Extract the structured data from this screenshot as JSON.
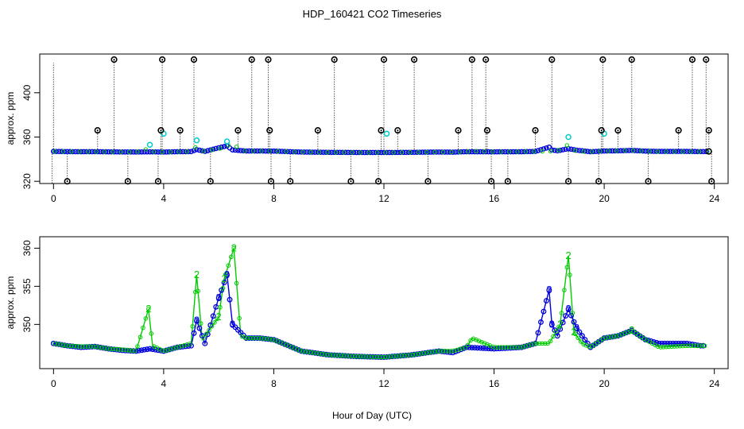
{
  "chart_data": {
    "title": "HDP_160421  CO2 Timeseries",
    "xlabel": "Hour of Day (UTC)",
    "colors": {
      "series2": "#00cc00",
      "series3": "#0000dd",
      "series1": "#000000",
      "cyan": "#00cccc"
    },
    "panels": [
      {
        "type": "scatter",
        "ylabel": "approx. ppm",
        "xlim": [
          -0.5,
          24.5
        ],
        "ylim": [
          318,
          435
        ],
        "xticks": [
          0,
          4,
          8,
          12,
          16,
          20,
          24
        ],
        "yticks": [
          320,
          360,
          400
        ],
        "baseline": 347,
        "outliers": [
          {
            "x": 0.5,
            "y": 320
          },
          {
            "x": 1.6,
            "y": 366
          },
          {
            "x": 2.2,
            "y": 430
          },
          {
            "x": 2.7,
            "y": 320
          },
          {
            "x": 3.8,
            "y": 320
          },
          {
            "x": 3.9,
            "y": 366
          },
          {
            "x": 3.95,
            "y": 430
          },
          {
            "x": 4.6,
            "y": 366
          },
          {
            "x": 5.1,
            "y": 430
          },
          {
            "x": 5.7,
            "y": 320
          },
          {
            "x": 6.7,
            "y": 366
          },
          {
            "x": 7.2,
            "y": 430
          },
          {
            "x": 7.8,
            "y": 430
          },
          {
            "x": 7.85,
            "y": 366
          },
          {
            "x": 7.9,
            "y": 320
          },
          {
            "x": 8.6,
            "y": 320
          },
          {
            "x": 9.6,
            "y": 366
          },
          {
            "x": 10.2,
            "y": 430
          },
          {
            "x": 10.8,
            "y": 320
          },
          {
            "x": 11.8,
            "y": 320
          },
          {
            "x": 11.9,
            "y": 366
          },
          {
            "x": 12.0,
            "y": 430
          },
          {
            "x": 12.5,
            "y": 366
          },
          {
            "x": 13.1,
            "y": 430
          },
          {
            "x": 13.6,
            "y": 320
          },
          {
            "x": 14.7,
            "y": 366
          },
          {
            "x": 15.2,
            "y": 430
          },
          {
            "x": 15.7,
            "y": 430
          },
          {
            "x": 15.75,
            "y": 366
          },
          {
            "x": 15.9,
            "y": 320
          },
          {
            "x": 16.5,
            "y": 320
          },
          {
            "x": 17.5,
            "y": 366
          },
          {
            "x": 18.1,
            "y": 430
          },
          {
            "x": 18.7,
            "y": 320
          },
          {
            "x": 19.8,
            "y": 320
          },
          {
            "x": 19.9,
            "y": 366
          },
          {
            "x": 19.95,
            "y": 430
          },
          {
            "x": 20.5,
            "y": 366
          },
          {
            "x": 21.0,
            "y": 430
          },
          {
            "x": 21.6,
            "y": 320
          },
          {
            "x": 22.7,
            "y": 366
          },
          {
            "x": 23.2,
            "y": 430
          },
          {
            "x": 23.7,
            "y": 430
          },
          {
            "x": 23.8,
            "y": 366
          },
          {
            "x": 23.9,
            "y": 320
          }
        ],
        "cyan_points": [
          {
            "x": 3.5,
            "y": 353
          },
          {
            "x": 4.0,
            "y": 363
          },
          {
            "x": 5.2,
            "y": 357
          },
          {
            "x": 6.3,
            "y": 356
          },
          {
            "x": 12.1,
            "y": 363
          },
          {
            "x": 18.7,
            "y": 360
          },
          {
            "x": 20.0,
            "y": 363
          }
        ]
      },
      {
        "type": "line",
        "ylabel": "approx. ppm",
        "xlim": [
          -0.5,
          24.5
        ],
        "ylim": [
          344.2,
          361.5
        ],
        "xticks": [
          0,
          4,
          8,
          12,
          16,
          20,
          24
        ],
        "yticks": [
          350,
          355,
          360
        ],
        "series": [
          {
            "label": "3",
            "x": [
              0,
              0.5,
              1,
              1.5,
              2,
              2.5,
              3,
              3.5,
              4,
              4.5,
              5,
              5.2,
              5.5,
              6,
              6.3,
              6.5,
              7,
              7.5,
              8,
              9,
              10,
              11,
              12,
              13,
              14,
              14.5,
              15,
              16,
              17,
              17.5,
              18,
              18.1,
              18.3,
              18.7,
              19,
              19.5,
              20,
              20.5,
              21,
              21.5,
              22,
              23,
              23.5
            ],
            "y": [
              347.5,
              347.2,
              347.0,
              347.1,
              346.8,
              346.6,
              346.5,
              346.8,
              346.5,
              347.0,
              347.2,
              350.5,
              347.5,
              353.5,
              356.5,
              350.0,
              348.2,
              348.2,
              348.0,
              346.5,
              346.0,
              345.8,
              345.7,
              346.0,
              346.5,
              346.3,
              347.0,
              346.8,
              347.0,
              347.5,
              354.5,
              350.0,
              348.5,
              352.0,
              349.5,
              347.0,
              348.2,
              348.5,
              349.2,
              348.0,
              347.5,
              347.5,
              347.2
            ]
          },
          {
            "label": "2",
            "x": [
              0,
              0.5,
              1,
              1.5,
              2,
              2.5,
              3,
              3.45,
              3.6,
              4,
              4.5,
              5,
              5.2,
              5.4,
              6,
              6.2,
              6.55,
              6.8,
              7,
              7.5,
              8,
              9,
              10,
              11,
              12,
              13,
              14,
              14.5,
              15,
              15.2,
              16,
              17,
              17.5,
              18,
              18.4,
              18.7,
              18.9,
              19.2,
              19.5,
              20,
              20.5,
              21,
              21.5,
              22,
              23,
              23.5
            ],
            "y": [
              347.5,
              347.2,
              347.1,
              347.1,
              346.8,
              346.7,
              346.5,
              352.0,
              347.2,
              346.5,
              347.0,
              347.5,
              356.5,
              348.0,
              351.0,
              356.0,
              360.0,
              348.5,
              348.2,
              348.2,
              348.0,
              346.5,
              346.0,
              345.8,
              345.7,
              346.0,
              346.5,
              346.5,
              347.0,
              348.2,
              347.0,
              347.0,
              347.5,
              347.5,
              350.0,
              359.0,
              349.0,
              347.5,
              347.0,
              348.2,
              348.5,
              349.2,
              348.0,
              347.0,
              347.2,
              347.2
            ]
          }
        ]
      }
    ]
  }
}
